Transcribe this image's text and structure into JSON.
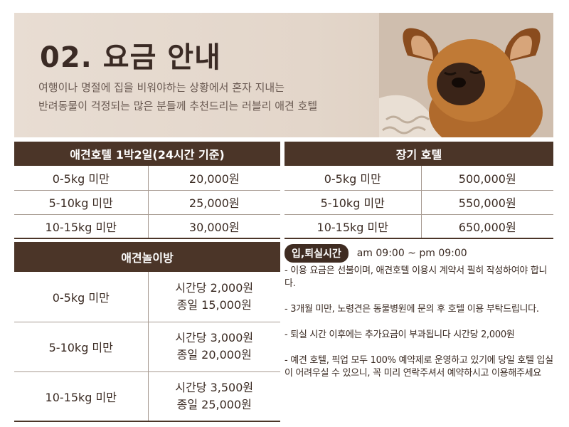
{
  "hero": {
    "title": "02. 요금 안내",
    "desc_line1": "여행이나 명절에 집을 비워야하는 상황에서 혼자 지내는",
    "desc_line2": "반려동물이 걱정되는 많은 분들께 추천드리는 러블리 애견 호텔"
  },
  "hotel": {
    "title": "애견호텔 1박2일(24시간 기준)",
    "rows": [
      {
        "weight": "0-5kg 미만",
        "price": "20,000원"
      },
      {
        "weight": "5-10kg 미만",
        "price": "25,000원"
      },
      {
        "weight": "10-15kg 미만",
        "price": "30,000원"
      }
    ]
  },
  "long_term": {
    "title": "장기 호텔",
    "rows": [
      {
        "weight": "0-5kg 미만",
        "price": "500,000원"
      },
      {
        "weight": "5-10kg 미만",
        "price": "550,000원"
      },
      {
        "weight": "10-15kg 미만",
        "price": "650,000원"
      }
    ]
  },
  "playroom": {
    "title": "애견놀이방",
    "rows": [
      {
        "weight": "0-5kg 미만",
        "hourly": "시간당 2,000원",
        "daily": "종일 15,000원"
      },
      {
        "weight": "5-10kg 미만",
        "hourly": "시간당 3,000원",
        "daily": "종일 20,000원"
      },
      {
        "weight": "10-15kg 미만",
        "hourly": "시간당 3,500원",
        "daily": "종일 25,000원"
      }
    ]
  },
  "checkin": {
    "label": "입,퇴실시간",
    "hours": "am 09:00 ~ pm 09:00"
  },
  "notes": [
    "- 이용 요금은 선불이며, 애견호텔 이용시 계약서 필히 작성하여야 합니다.",
    "- 3개월 미만, 노령견은 동물병원에 문의 후 호텔 이용 부탁드립니다.",
    "- 퇴실 시간 이후에는 추가요금이 부과됩니다 시간당 2,000원",
    "- 예견 호텔, 픽업 모두 100% 예약제로 운영하고 있기에 당일 호텔 입실이 어려우실 수 있으니, 꼭 미리 연락주셔서 예약하시고 이용해주세요"
  ],
  "colors": {
    "header": "#4b3528",
    "pill": "#3f2c22",
    "hero_bg": "#e5d9cd"
  },
  "icons": [
    "dog-photo"
  ]
}
